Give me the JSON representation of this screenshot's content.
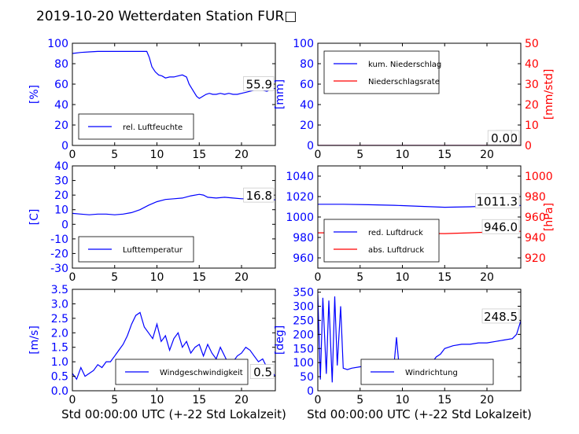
{
  "figure": {
    "title": "2019-10-20 Wetterdaten Station FUR□",
    "xlabel": "Std 00:00:00 UTC (+-22 Std Lokalzeit)"
  },
  "colors": {
    "primary": "#0000ff",
    "secondary": "#ff0000",
    "axis": "#000000"
  },
  "chart_data": [
    {
      "type": "line",
      "ylabel": "[%]",
      "xlim": [
        0,
        24
      ],
      "ylim": [
        0,
        100
      ],
      "xticks": [
        0,
        5,
        10,
        15,
        20
      ],
      "yticks": [
        0,
        20,
        40,
        60,
        80,
        100
      ],
      "last_value": "55.9",
      "legend": {
        "location": "lower-left",
        "items": [
          {
            "name": "rel. Luftfeuchte",
            "color": "#0000ff"
          }
        ]
      },
      "series": [
        {
          "name": "rel. Luftfeuchte",
          "color": "#0000ff",
          "x": [
            0,
            1,
            2,
            3,
            4,
            5,
            6,
            7,
            8,
            8.8,
            9.1,
            9.4,
            9.8,
            10.2,
            10.6,
            11,
            11.5,
            12,
            12.5,
            13,
            13.5,
            13.8,
            14.1,
            14.4,
            14.7,
            15,
            15.4,
            15.8,
            16.2,
            16.6,
            17,
            17.5,
            18,
            18.5,
            19,
            19.5,
            20,
            20.5,
            21,
            21.5,
            22,
            22.5,
            23,
            23.5,
            24
          ],
          "y": [
            90,
            91,
            91.5,
            92,
            92,
            92,
            92,
            92,
            92,
            92,
            86,
            77,
            72,
            69,
            68,
            66,
            67,
            67,
            68,
            69,
            67,
            60,
            56,
            52,
            48,
            46,
            48,
            50,
            51,
            50,
            50,
            51,
            50,
            51,
            50,
            50,
            51,
            52,
            53,
            54,
            55,
            54,
            53,
            55,
            55.9
          ]
        }
      ]
    },
    {
      "type": "line",
      "ylabel": "[mm]",
      "ylabel_right": "[mm/std]",
      "xlim": [
        0,
        24
      ],
      "ylim": [
        0,
        100
      ],
      "ylim_right": [
        0,
        50
      ],
      "xticks": [
        0,
        5,
        10,
        15,
        20
      ],
      "yticks": [
        0,
        20,
        40,
        60,
        80,
        100
      ],
      "yticks_right": [
        0,
        10,
        20,
        30,
        40,
        50
      ],
      "last_value": "0.0",
      "last_value_2": "0.0",
      "legend": {
        "location": "upper-left",
        "items": [
          {
            "name": "kum. Niederschlag",
            "color": "#0000ff"
          },
          {
            "name": "Niederschlagsrate",
            "color": "#ff0000"
          }
        ]
      },
      "series": [
        {
          "name": "kum. Niederschlag",
          "color": "#0000ff",
          "axis": "left",
          "x": [
            0,
            24
          ],
          "y": [
            0,
            0
          ]
        },
        {
          "name": "Niederschlagsrate",
          "color": "#ff0000",
          "axis": "right",
          "x": [
            0,
            24
          ],
          "y": [
            0,
            0
          ]
        }
      ]
    },
    {
      "type": "line",
      "ylabel": "[C]",
      "xlim": [
        0,
        24
      ],
      "ylim": [
        -30,
        40
      ],
      "xticks": [
        0,
        5,
        10,
        15,
        20
      ],
      "yticks": [
        -30,
        -20,
        -10,
        0,
        10,
        20,
        30,
        40
      ],
      "last_value": "16.8",
      "legend": {
        "location": "lower-left",
        "items": [
          {
            "name": "Lufttemperatur",
            "color": "#0000ff"
          }
        ]
      },
      "series": [
        {
          "name": "Lufttemperatur",
          "color": "#0000ff",
          "x": [
            0,
            1,
            2,
            3,
            4,
            5,
            6,
            7,
            8,
            9,
            10,
            11,
            12,
            13,
            14,
            15,
            15.5,
            16,
            17,
            18,
            19,
            20,
            21,
            22,
            23,
            24
          ],
          "y": [
            7.5,
            7,
            6.5,
            7,
            7,
            6.5,
            7,
            8,
            10,
            13,
            15.5,
            17,
            17.5,
            18,
            19.5,
            20.5,
            20,
            18.5,
            18,
            18.5,
            18,
            17.5,
            17.5,
            17,
            17,
            16.8
          ]
        }
      ]
    },
    {
      "type": "line",
      "ylabel_right": "[hPa]",
      "xlim": [
        0,
        24
      ],
      "ylim": [
        950,
        1050
      ],
      "ylim_right": [
        910,
        1010
      ],
      "xticks": [
        0,
        5,
        10,
        15,
        20
      ],
      "yticks": [
        960,
        980,
        1000,
        1020,
        1040
      ],
      "yticks_right": [
        920,
        940,
        960,
        980,
        1000
      ],
      "last_value": "1011.3",
      "last_value_2": "946.0",
      "legend": {
        "location": "lower-left",
        "items": [
          {
            "name": "red. Luftdruck",
            "color": "#0000ff"
          },
          {
            "name": "abs. Luftdruck",
            "color": "#ff0000"
          }
        ]
      },
      "series": [
        {
          "name": "red. Luftdruck",
          "color": "#0000ff",
          "axis": "left",
          "x": [
            0,
            3,
            6,
            9,
            12,
            15,
            18,
            21,
            24
          ],
          "y": [
            1012.5,
            1012.5,
            1012,
            1011.5,
            1010.5,
            1009.5,
            1010,
            1011,
            1011.3
          ]
        },
        {
          "name": "abs. Luftdruck",
          "color": "#ff0000",
          "axis": "right",
          "x": [
            0,
            3,
            6,
            9,
            12,
            15,
            18,
            21,
            24
          ],
          "y": [
            944.5,
            944.5,
            944.3,
            944.2,
            944,
            943.8,
            944.5,
            945.5,
            946
          ]
        }
      ]
    },
    {
      "type": "line",
      "ylabel": "[m/s]",
      "xlim": [
        0,
        24
      ],
      "ylim": [
        0,
        3.5
      ],
      "xticks": [
        0,
        5,
        10,
        15,
        20
      ],
      "yticks": [
        0.0,
        0.5,
        1.0,
        1.5,
        2.0,
        2.5,
        3.0,
        3.5
      ],
      "last_value": "0.5",
      "legend": {
        "location": "lower-center",
        "items": [
          {
            "name": "Windgeschwindigkeit",
            "color": "#0000ff"
          }
        ]
      },
      "series": [
        {
          "name": "Windgeschwindigkeit",
          "color": "#0000ff",
          "x": [
            0,
            0.5,
            1,
            1.5,
            2,
            2.5,
            3,
            3.5,
            4,
            4.5,
            5,
            5.5,
            6,
            6.5,
            7,
            7.5,
            8,
            8.5,
            9,
            9.5,
            10,
            10.5,
            11,
            11.5,
            12,
            12.5,
            13,
            13.5,
            14,
            14.5,
            15,
            15.5,
            16,
            16.5,
            17,
            17.5,
            18,
            18.5,
            19,
            19.5,
            20,
            20.5,
            21,
            21.5,
            22,
            22.5,
            23,
            23.5,
            24
          ],
          "y": [
            0.6,
            0.4,
            0.8,
            0.5,
            0.6,
            0.7,
            0.9,
            0.8,
            1.0,
            1.0,
            1.2,
            1.4,
            1.6,
            1.9,
            2.3,
            2.6,
            2.7,
            2.2,
            2.0,
            1.8,
            2.3,
            1.7,
            1.9,
            1.4,
            1.8,
            2.0,
            1.5,
            1.7,
            1.3,
            1.5,
            1.6,
            1.2,
            1.6,
            1.3,
            1.1,
            1.5,
            1.2,
            0.9,
            1.0,
            1.2,
            1.3,
            1.5,
            1.4,
            1.2,
            1.0,
            1.1,
            0.8,
            0.7,
            0.5
          ]
        }
      ]
    },
    {
      "type": "line",
      "ylabel": "[deg]",
      "xlim": [
        0,
        24
      ],
      "ylim": [
        0,
        360
      ],
      "xticks": [
        0,
        5,
        10,
        15,
        20
      ],
      "yticks": [
        0,
        50,
        100,
        150,
        200,
        250,
        300,
        350
      ],
      "last_value": "248.5",
      "legend": {
        "location": "lower-center",
        "items": [
          {
            "name": "Windrichtung",
            "color": "#0000ff"
          }
        ]
      },
      "series": [
        {
          "name": "Windrichtung",
          "color": "#0000ff",
          "x": [
            0,
            0.3,
            0.6,
            1,
            1.3,
            1.7,
            2,
            2.3,
            2.7,
            3,
            3.5,
            4,
            5,
            6,
            7,
            8,
            9,
            9.3,
            9.6,
            10,
            11,
            12,
            13,
            13.5,
            14,
            14.5,
            15,
            16,
            17,
            18,
            19,
            20,
            21,
            22,
            23,
            23.5,
            24
          ],
          "y": [
            340,
            40,
            330,
            60,
            320,
            30,
            335,
            90,
            300,
            80,
            75,
            80,
            85,
            90,
            80,
            85,
            90,
            190,
            90,
            85,
            80,
            85,
            80,
            100,
            120,
            130,
            150,
            160,
            165,
            165,
            170,
            170,
            175,
            180,
            185,
            200,
            248.5
          ]
        }
      ]
    }
  ]
}
